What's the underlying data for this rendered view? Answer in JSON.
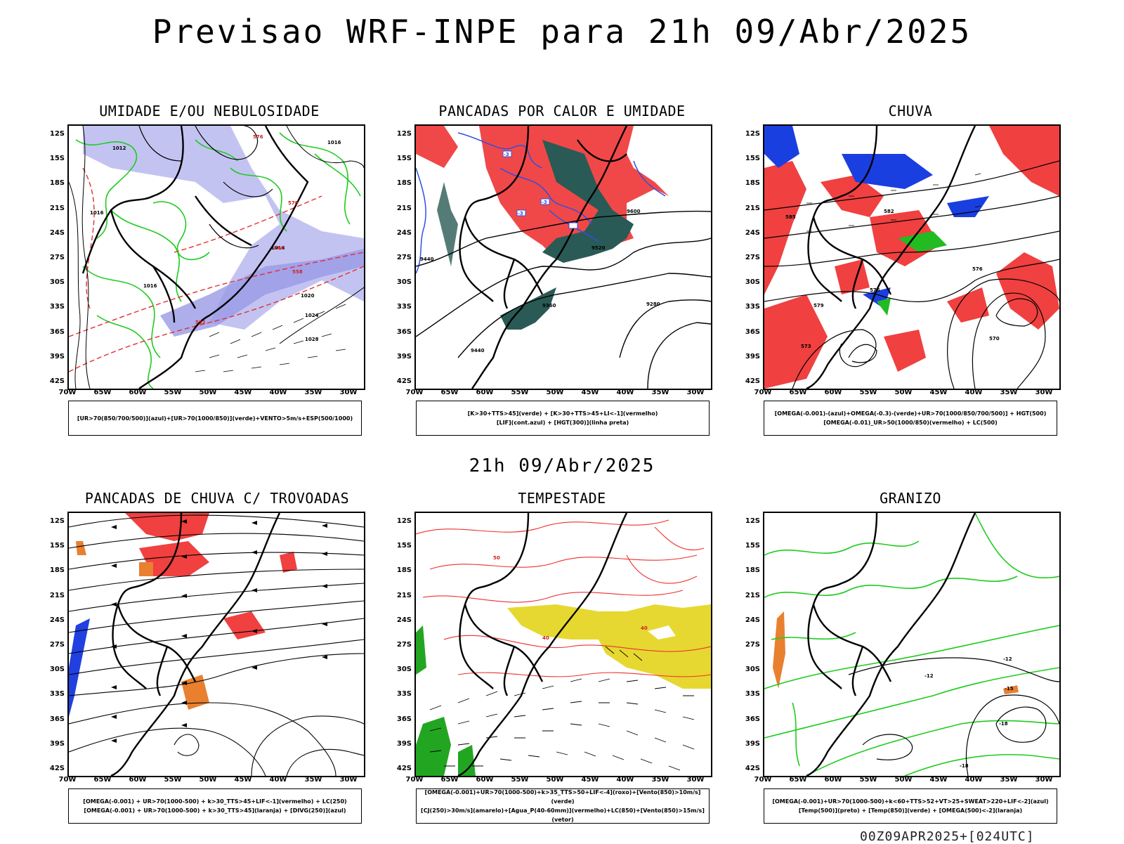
{
  "header": {
    "title": "Previsao WRF-INPE  para 21h 09/Abr/2025"
  },
  "middle": {
    "subtitle": "21h 09/Abr/2025"
  },
  "footer": {
    "run": "00Z09APR2025+[024UTC]"
  },
  "axes": {
    "lat": [
      "12S",
      "15S",
      "18S",
      "21S",
      "24S",
      "27S",
      "30S",
      "33S",
      "36S",
      "39S",
      "42S"
    ],
    "lon": [
      "70W",
      "65W",
      "60W",
      "55W",
      "50W",
      "45W",
      "40W",
      "35W",
      "30W"
    ]
  },
  "panels": [
    {
      "id": "umidade",
      "title": "UMIDADE E/OU NEBULOSIDADE",
      "legend": [
        "[UR>70(850/700/500)](azul)+[UR>70(1000/850)](verde)+VENTO>5m/s+ESP(500/1000)"
      ],
      "contour_labels": [
        "1016",
        "1012",
        "1016",
        "1016",
        "1016",
        "1024",
        "1020",
        "1028",
        "576",
        "570",
        "564",
        "558",
        "552"
      ]
    },
    {
      "id": "pancadas",
      "title": "PANCADAS POR CALOR E UMIDADE",
      "legend": [
        "[K>30+TTS>45](verde) + [K>30+TTS>45+LI<-1](vermelho)",
        "[LIF](cont.azul) + [HGT(300)](linha preta)"
      ],
      "contour_labels": [
        "9600",
        "9520",
        "9440",
        "9440",
        "9360",
        "9280",
        "-3",
        "-3",
        "-3"
      ]
    },
    {
      "id": "chuva",
      "title": "CHUVA",
      "legend": [
        "[OMEGA(-0.001)-(azul)+OMEGA(-0.3)-(verde)+UR>70(1000/850/700/500)] + HGT(500)",
        "[OMEGA(-0.01)_UR>50(1000/850)(vermelho) + LC(500)"
      ],
      "contour_labels": [
        "582",
        "579",
        "576",
        "576",
        "573",
        "570",
        "585"
      ]
    },
    {
      "id": "trovoadas",
      "title": "PANCADAS DE CHUVA C/ TROVOADAS",
      "legend": [
        "[OMEGA(-0.001) + UR>70(1000-500) + k>30_TTS>45+LIF<-1](vermelho) + LC(250)",
        "[OMEGA(-0.001) + UR>70(1000-500) + k>30_TTS>45](laranja) + [DIVG(250)](azul)"
      ],
      "contour_labels": []
    },
    {
      "id": "tempestade",
      "title": "TEMPESTADE",
      "legend": [
        "[OMEGA(-0.001)+UR>70(1000-500)+k>35_TTS>50+LIF<-4](roxo)+[Vento(850)>10m/s](verde)",
        "[CJ(250)>30m/s](amarelo)+[Agua_P(40-60mm)](vermelho)+LC(850)+[Vento(850)>15m/s](vetor)"
      ],
      "contour_labels": [
        "40",
        "40",
        "50"
      ]
    },
    {
      "id": "granizo",
      "title": "GRANIZO",
      "legend": [
        "[OMEGA(-0.001)+UR>70(1000-500)+k<60+TTS>52+VT>25+SWEAT>220+LIF<-2](azul)",
        "[Temp(500)](preto) + [Temp(850)](verde) + [OMEGA(500)<-2](laranja)"
      ],
      "contour_labels": [
        "-12",
        "-12",
        "-15",
        "-18",
        "-18"
      ]
    }
  ]
}
